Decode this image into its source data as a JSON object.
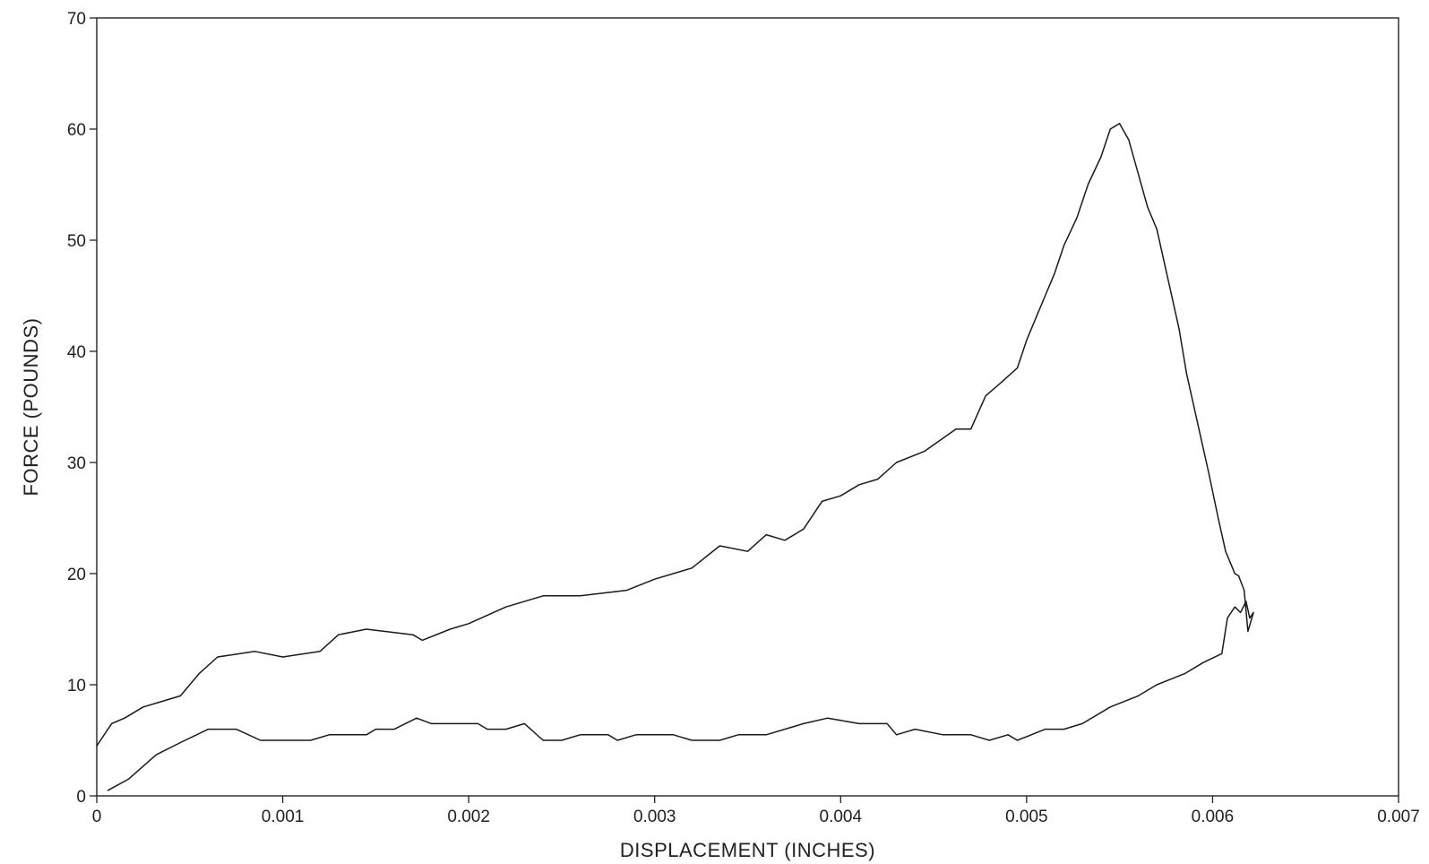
{
  "chart_data": {
    "type": "line",
    "title": "",
    "xlabel": "DISPLACEMENT (INCHES)",
    "ylabel": "FORCE (POUNDS)",
    "xlim": [
      0,
      0.007
    ],
    "ylim": [
      0,
      70
    ],
    "x_ticks": [
      "0",
      "0.001",
      "0.002",
      "0.003",
      "0.004",
      "0.005",
      "0.006",
      "0.007"
    ],
    "y_ticks": [
      "0",
      "10",
      "20",
      "30",
      "40",
      "50",
      "60",
      "70"
    ],
    "grid": false,
    "legend": "none",
    "line_color": "#1a1a1a",
    "series": [
      {
        "points": [
          [
            6e-05,
            0.5
          ],
          [
            0.00017,
            1.5
          ],
          [
            0.00032,
            3.7
          ],
          [
            0.00045,
            4.8
          ],
          [
            0.0006,
            6.0
          ],
          [
            0.00075,
            6.0
          ],
          [
            0.00088,
            5.0
          ],
          [
            0.00115,
            5.0
          ],
          [
            0.00125,
            5.5
          ],
          [
            0.00145,
            5.5
          ],
          [
            0.0015,
            6.0
          ],
          [
            0.0016,
            6.0
          ],
          [
            0.00172,
            7.0
          ],
          [
            0.0018,
            6.5
          ],
          [
            0.00205,
            6.5
          ],
          [
            0.0021,
            6.0
          ],
          [
            0.0022,
            6.0
          ],
          [
            0.0023,
            6.5
          ],
          [
            0.0024,
            5.0
          ],
          [
            0.0025,
            5.0
          ],
          [
            0.0026,
            5.5
          ],
          [
            0.00275,
            5.5
          ],
          [
            0.0028,
            5.0
          ],
          [
            0.0029,
            5.5
          ],
          [
            0.0031,
            5.5
          ],
          [
            0.0032,
            5.0
          ],
          [
            0.00335,
            5.0
          ],
          [
            0.00345,
            5.5
          ],
          [
            0.0036,
            5.5
          ],
          [
            0.0038,
            6.5
          ],
          [
            0.00393,
            7.0
          ],
          [
            0.0041,
            6.5
          ],
          [
            0.00425,
            6.5
          ],
          [
            0.0043,
            5.5
          ],
          [
            0.0044,
            6.0
          ],
          [
            0.00455,
            5.5
          ],
          [
            0.0047,
            5.5
          ],
          [
            0.0048,
            5.0
          ],
          [
            0.0049,
            5.5
          ],
          [
            0.00495,
            5.0
          ],
          [
            0.0051,
            6.0
          ],
          [
            0.0052,
            6.0
          ],
          [
            0.0053,
            6.5
          ],
          [
            0.00545,
            8.0
          ],
          [
            0.0056,
            9.0
          ],
          [
            0.0057,
            10.0
          ],
          [
            0.00585,
            11.0
          ],
          [
            0.00595,
            12.0
          ],
          [
            0.00605,
            12.8
          ],
          [
            0.00608,
            16.0
          ],
          [
            0.00612,
            17.0
          ],
          [
            0.00615,
            16.5
          ],
          [
            0.00618,
            17.5
          ],
          [
            0.0062,
            16.0
          ],
          [
            0.00622,
            16.5
          ],
          [
            0.00619,
            14.8
          ],
          [
            0.00617,
            18.5
          ],
          [
            0.00614,
            19.8
          ],
          [
            0.00612,
            20.0
          ],
          [
            0.00607,
            22.0
          ],
          [
            0.00603,
            25.0
          ],
          [
            0.00598,
            29.0
          ],
          [
            0.00594,
            32.0
          ],
          [
            0.0059,
            35.0
          ],
          [
            0.00586,
            38.0
          ],
          [
            0.00582,
            42.0
          ],
          [
            0.00578,
            45.0
          ],
          [
            0.00574,
            48.0
          ],
          [
            0.0057,
            51.0
          ],
          [
            0.00565,
            53.0
          ],
          [
            0.0056,
            56.0
          ],
          [
            0.00555,
            59.0
          ],
          [
            0.0055,
            60.5
          ],
          [
            0.00545,
            60.0
          ],
          [
            0.0054,
            57.5
          ],
          [
            0.00533,
            55.0
          ],
          [
            0.00527,
            52.0
          ],
          [
            0.0052,
            49.5
          ],
          [
            0.00515,
            47.0
          ],
          [
            0.0051,
            45.0
          ],
          [
            0.00505,
            43.0
          ],
          [
            0.005,
            41.0
          ],
          [
            0.00495,
            38.5
          ],
          [
            0.00485,
            37.0
          ],
          [
            0.00478,
            36.0
          ],
          [
            0.0047,
            33.0
          ],
          [
            0.00462,
            33.0
          ],
          [
            0.00445,
            31.0
          ],
          [
            0.0043,
            30.0
          ],
          [
            0.0042,
            28.5
          ],
          [
            0.0041,
            28.0
          ],
          [
            0.004,
            27.0
          ],
          [
            0.0039,
            26.5
          ],
          [
            0.0038,
            24.0
          ],
          [
            0.0037,
            23.0
          ],
          [
            0.0036,
            23.5
          ],
          [
            0.0035,
            22.0
          ],
          [
            0.00335,
            22.5
          ],
          [
            0.0032,
            20.5
          ],
          [
            0.003,
            19.5
          ],
          [
            0.00285,
            18.5
          ],
          [
            0.0026,
            18.0
          ],
          [
            0.0024,
            18.0
          ],
          [
            0.0022,
            17.0
          ],
          [
            0.002,
            15.5
          ],
          [
            0.0019,
            15.0
          ],
          [
            0.00175,
            14.0
          ],
          [
            0.0017,
            14.5
          ],
          [
            0.00145,
            15.0
          ],
          [
            0.0013,
            14.5
          ],
          [
            0.0012,
            13.0
          ],
          [
            0.001,
            12.5
          ],
          [
            0.00085,
            13.0
          ],
          [
            0.00065,
            12.5
          ],
          [
            0.00055,
            11.0
          ],
          [
            0.00045,
            9.0
          ],
          [
            0.00035,
            8.5
          ],
          [
            0.00025,
            8.0
          ],
          [
            0.00015,
            7.0
          ],
          [
            8e-05,
            6.5
          ],
          [
            2e-05,
            5.0
          ],
          [
            0.0,
            4.5
          ]
        ]
      }
    ]
  }
}
